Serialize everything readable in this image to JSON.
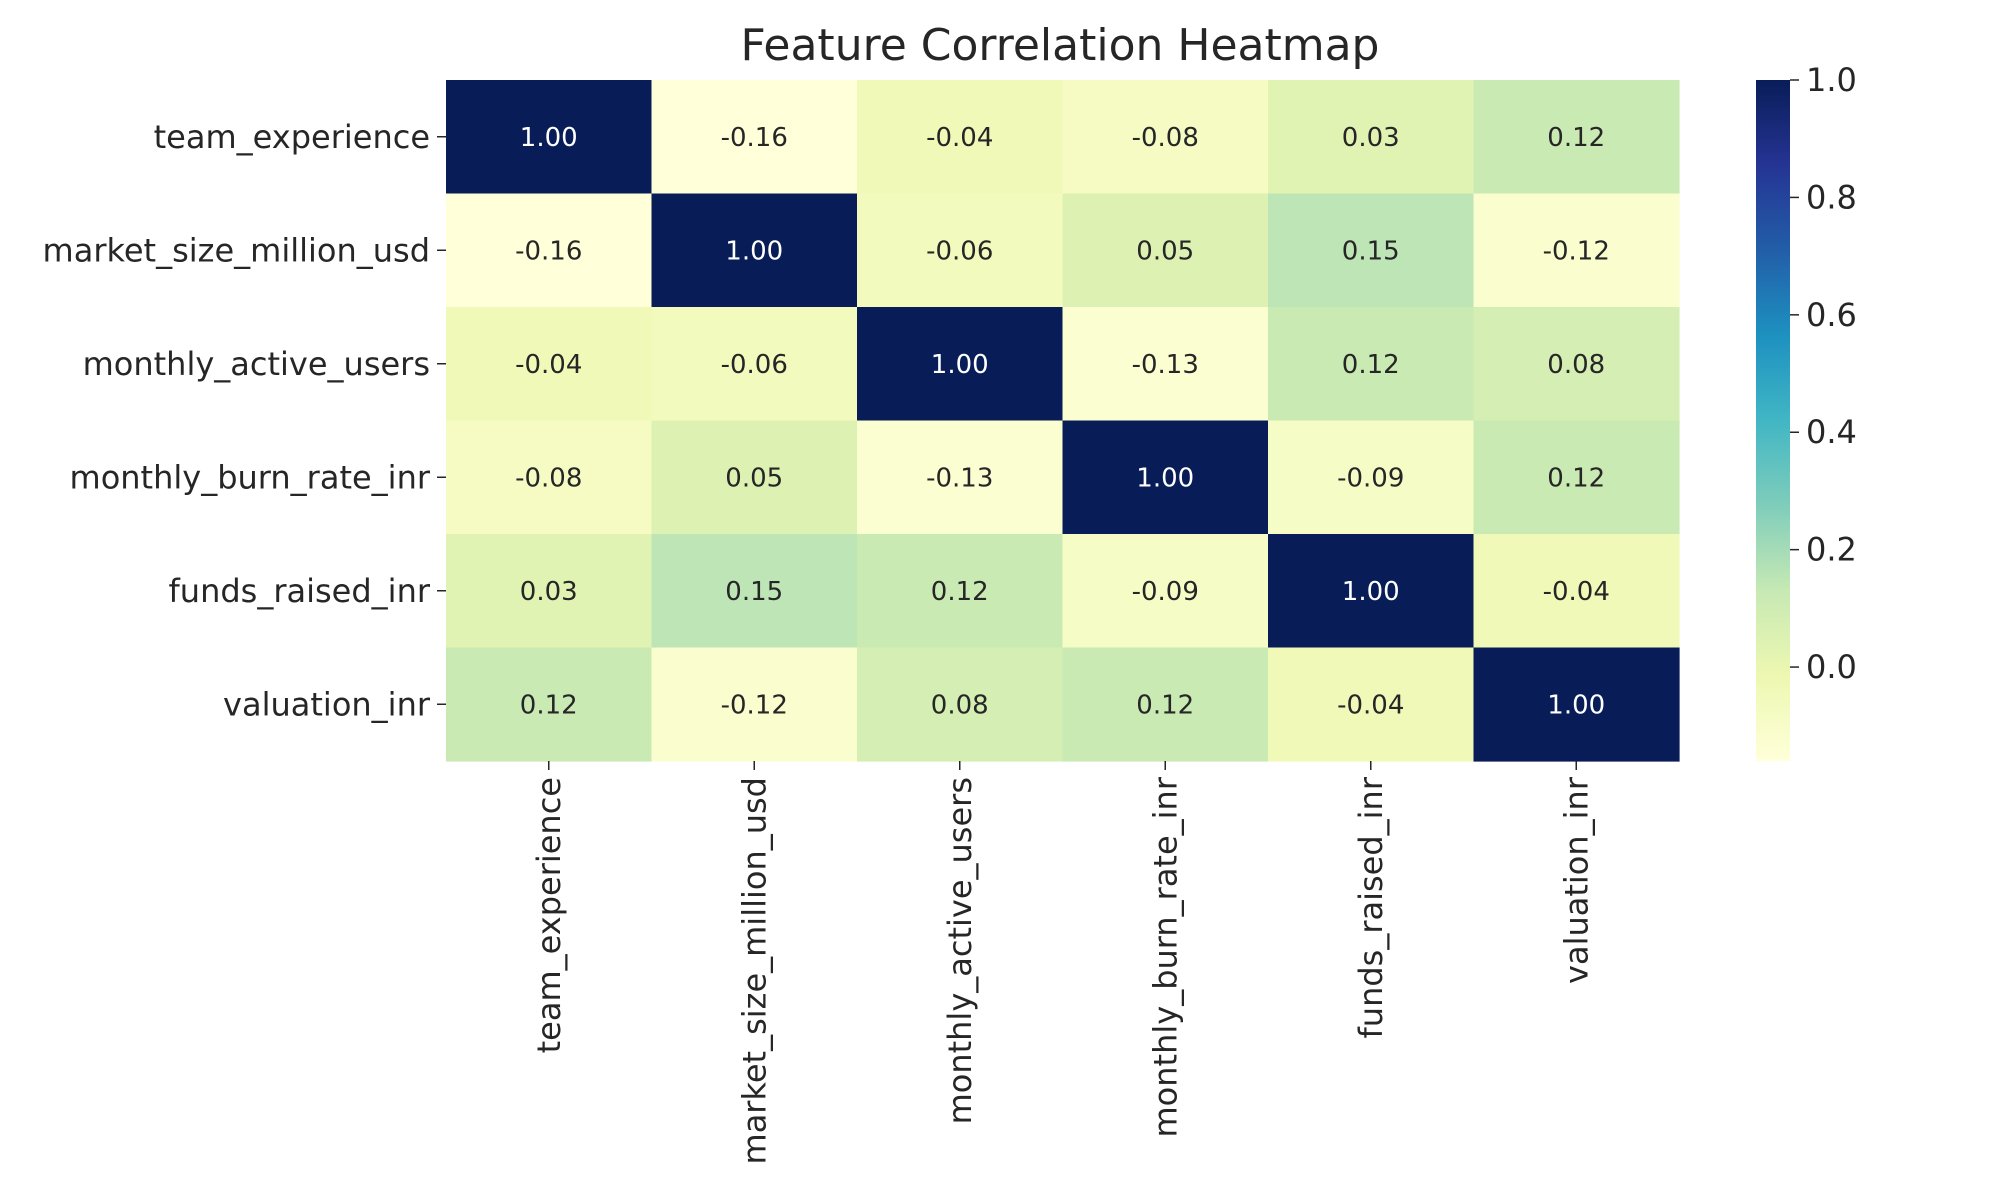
{
  "chart_data": {
    "type": "heatmap",
    "title": "Feature Correlation Heatmap",
    "x_labels": [
      "team_experience",
      "market_size_million_usd",
      "monthly_active_users",
      "monthly_burn_rate_inr",
      "funds_raised_inr",
      "valuation_inr"
    ],
    "y_labels": [
      "team_experience",
      "market_size_million_usd",
      "monthly_active_users",
      "monthly_burn_rate_inr",
      "funds_raised_inr",
      "valuation_inr"
    ],
    "values": [
      [
        1.0,
        -0.16,
        -0.04,
        -0.08,
        0.03,
        0.12
      ],
      [
        -0.16,
        1.0,
        -0.06,
        0.05,
        0.15,
        -0.12
      ],
      [
        -0.04,
        -0.06,
        1.0,
        -0.13,
        0.12,
        0.08
      ],
      [
        -0.08,
        0.05,
        -0.13,
        1.0,
        -0.09,
        0.12
      ],
      [
        0.03,
        0.15,
        0.12,
        -0.09,
        1.0,
        -0.04
      ],
      [
        0.12,
        -0.12,
        0.08,
        0.12,
        -0.04,
        1.0
      ]
    ],
    "value_labels": [
      [
        "1.00",
        "-0.16",
        "-0.04",
        "-0.08",
        "0.03",
        "0.12"
      ],
      [
        "-0.16",
        "1.00",
        "-0.06",
        "0.05",
        "0.15",
        "-0.12"
      ],
      [
        "-0.04",
        "-0.06",
        "1.00",
        "-0.13",
        "0.12",
        "0.08"
      ],
      [
        "-0.08",
        "0.05",
        "-0.13",
        "1.00",
        "-0.09",
        "0.12"
      ],
      [
        "0.03",
        "0.15",
        "0.12",
        "-0.09",
        "1.00",
        "-0.04"
      ],
      [
        "0.12",
        "-0.12",
        "0.08",
        "0.12",
        "-0.04",
        "1.00"
      ]
    ],
    "colormap": "YlGnBu",
    "color_range": [
      -0.16,
      1.0
    ],
    "colorbar": {
      "ticks": [
        0.0,
        0.2,
        0.4,
        0.6,
        0.8,
        1.0
      ],
      "tick_labels": [
        "0.0",
        "0.2",
        "0.4",
        "0.6",
        "0.8",
        "1.0"
      ],
      "placement": "right"
    },
    "colormap_stops": [
      "#ffffd9",
      "#edf8b1",
      "#c7e9b4",
      "#7fcdbb",
      "#41b6c4",
      "#1d91c0",
      "#225ea8",
      "#253494",
      "#081d58"
    ],
    "annotation_colors": {
      "dark": "#262626",
      "light": "#ffffff"
    }
  }
}
